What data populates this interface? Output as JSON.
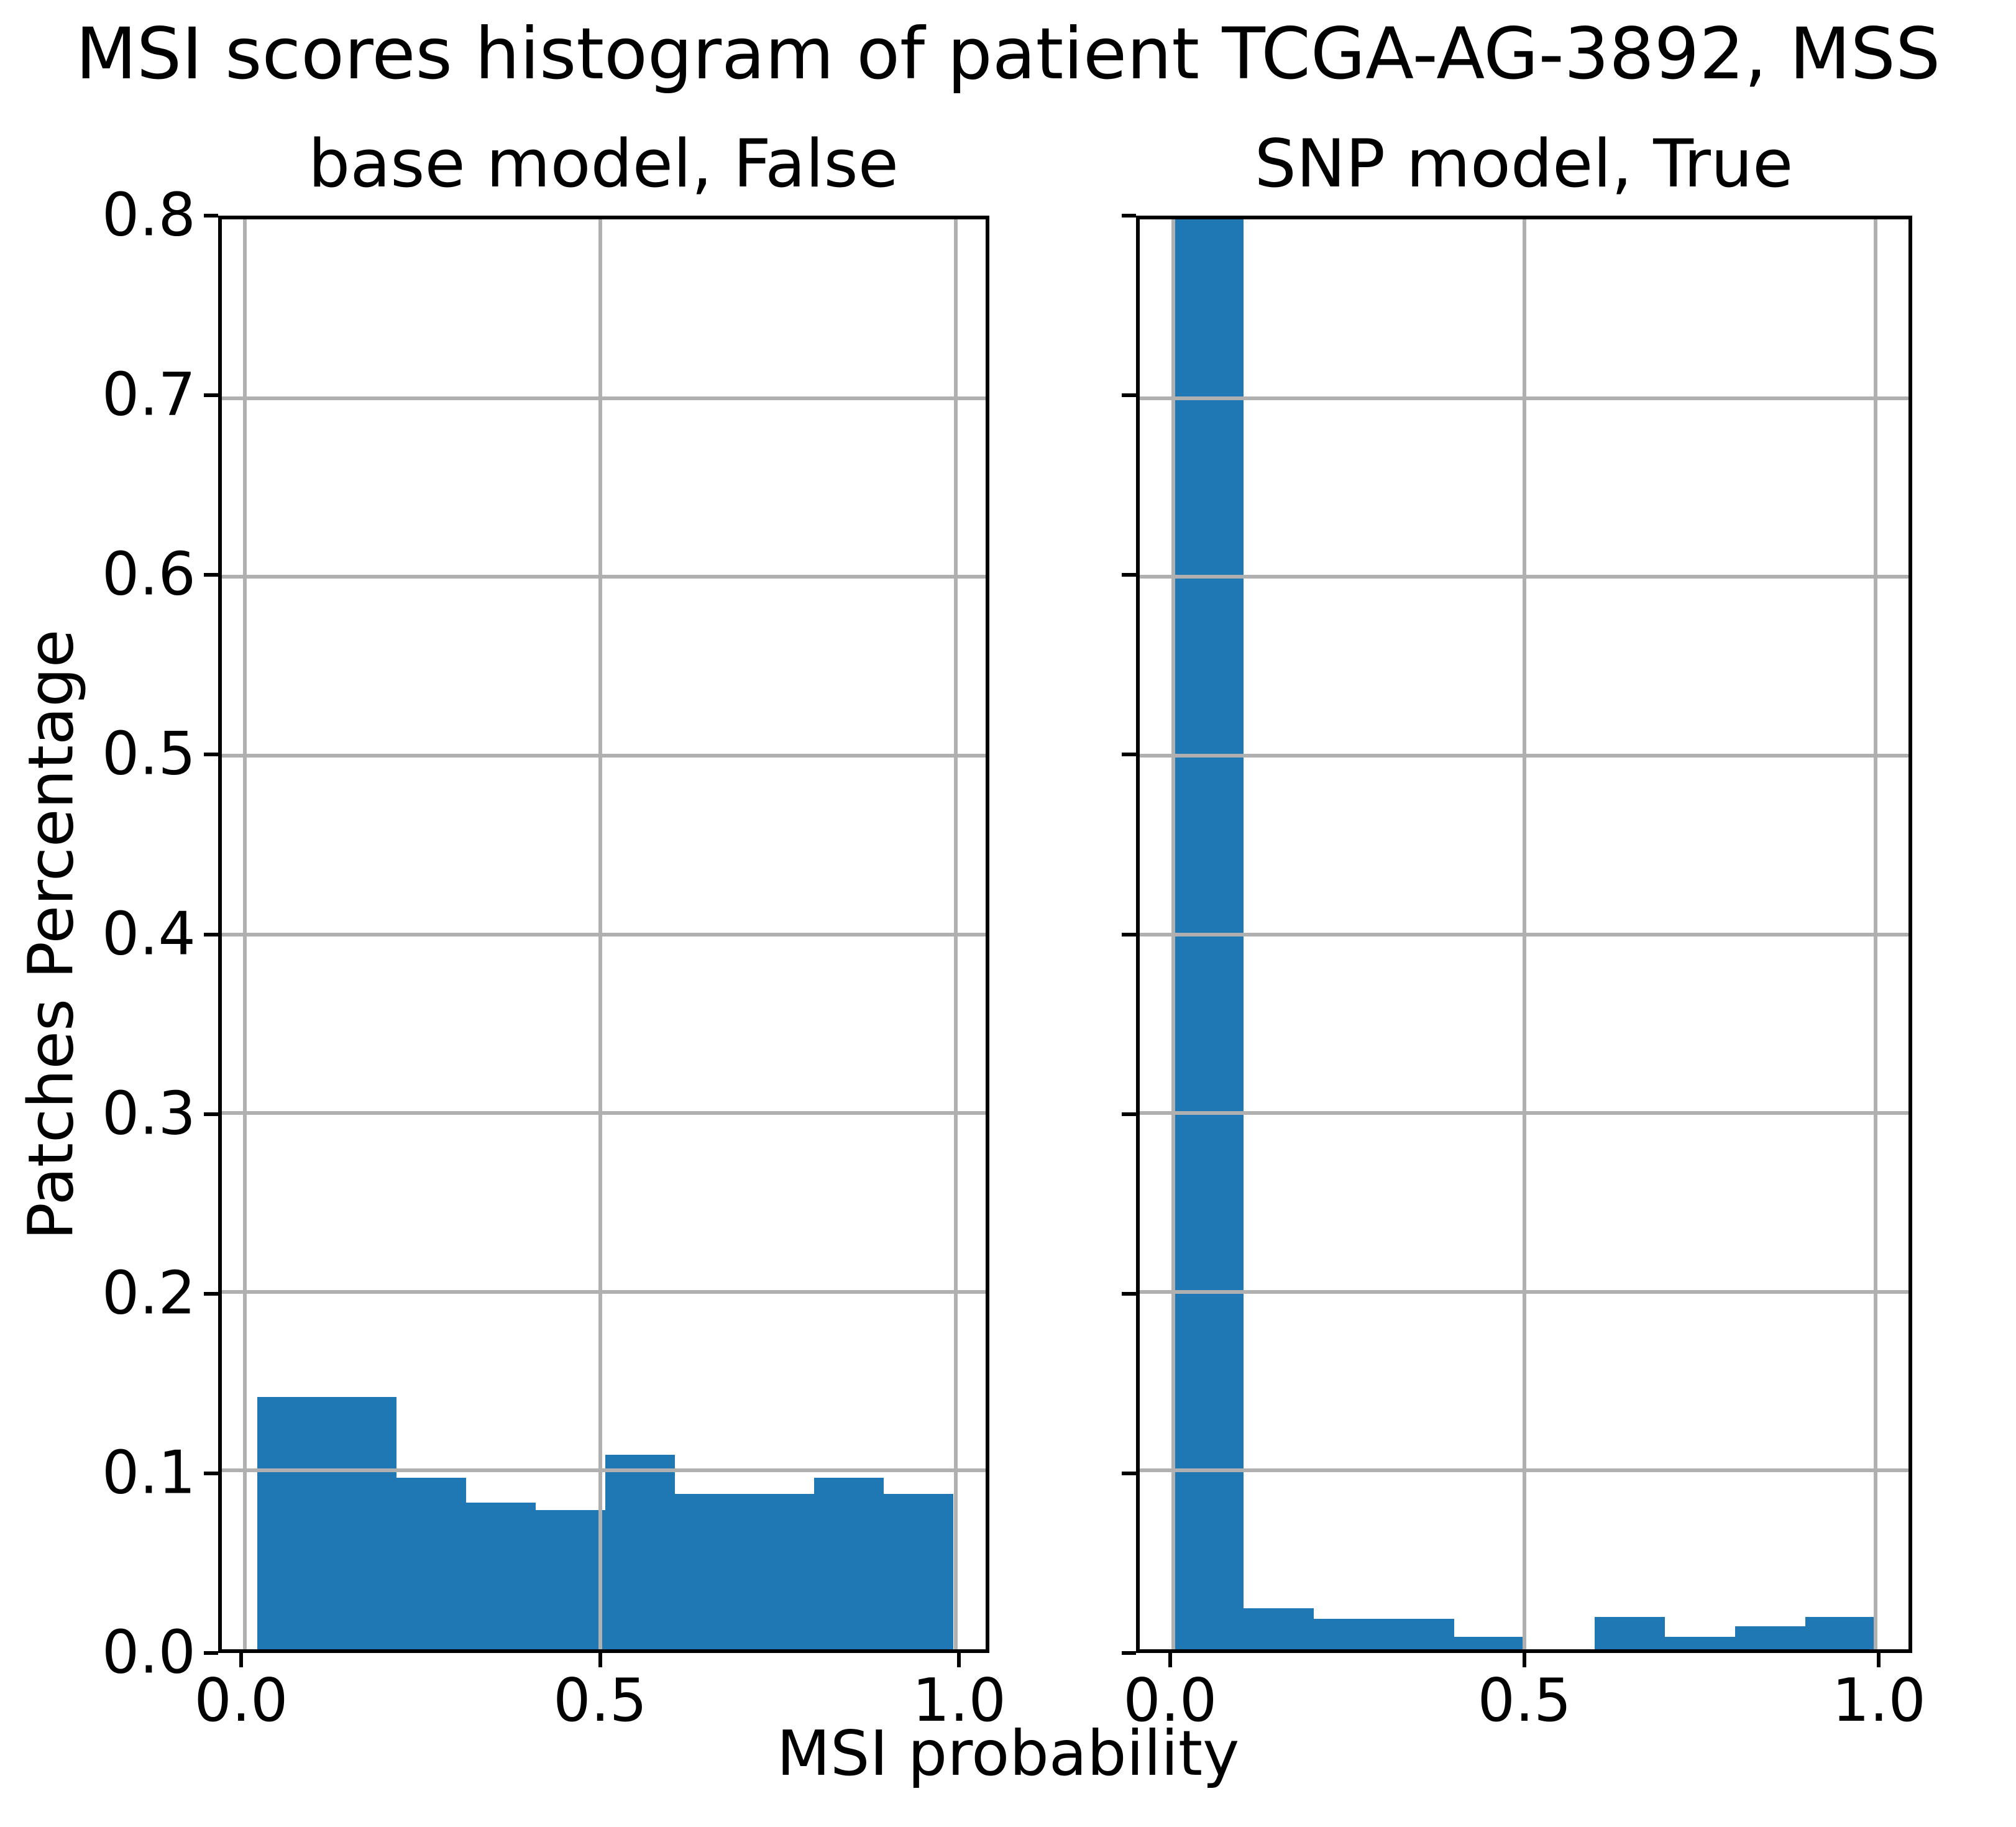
{
  "figure": {
    "title": "MSI scores histogram of patient TCGA-AG-3892, MSS",
    "xlabel": "MSI probability",
    "ylabel": "Patches Percentage"
  },
  "style": {
    "bar_color": "#1f77b4",
    "grid_color": "#b0b0b0",
    "axis_color": "#000000",
    "background": "#ffffff"
  },
  "chart_data": [
    {
      "type": "bar",
      "title": "base model, False",
      "ylabel": "Patches Percentage",
      "bin_start": 0.018,
      "bin_width": 0.0979,
      "values": [
        0.141,
        0.141,
        0.096,
        0.082,
        0.078,
        0.109,
        0.087,
        0.087,
        0.096,
        0.087
      ],
      "xlim": [
        -0.032,
        1.042
      ],
      "ylim": [
        0,
        0.8
      ],
      "xticks": [
        0.0,
        0.5,
        1.0
      ],
      "xtick_labels": [
        "0.0",
        "0.5",
        "1.0"
      ],
      "yticks": [
        0.0,
        0.1,
        0.2,
        0.3,
        0.4,
        0.5,
        0.6,
        0.7,
        0.8
      ],
      "ytick_labels": [
        "0.0",
        "0.1",
        "0.2",
        "0.3",
        "0.4",
        "0.5",
        "0.6",
        "0.7",
        "0.8"
      ],
      "show_ytick_labels": true,
      "grid": true
    },
    {
      "type": "bar",
      "title": "SNP model, True",
      "bin_start": 0.0,
      "bin_width": 0.1,
      "values": [
        0.88,
        0.023,
        0.017,
        0.017,
        0.007,
        0.0,
        0.018,
        0.007,
        0.013,
        0.018
      ],
      "first_bin_clipped_by_ylim": true,
      "xlim": [
        -0.048,
        1.047
      ],
      "ylim": [
        0,
        0.8
      ],
      "xticks": [
        0.0,
        0.5,
        1.0
      ],
      "xtick_labels": [
        "0.0",
        "0.5",
        "1.0"
      ],
      "yticks": [
        0.0,
        0.1,
        0.2,
        0.3,
        0.4,
        0.5,
        0.6,
        0.7,
        0.8
      ],
      "ytick_labels": [
        "0.0",
        "0.1",
        "0.2",
        "0.3",
        "0.4",
        "0.5",
        "0.6",
        "0.7",
        "0.8"
      ],
      "show_ytick_labels": false,
      "grid": true
    }
  ]
}
